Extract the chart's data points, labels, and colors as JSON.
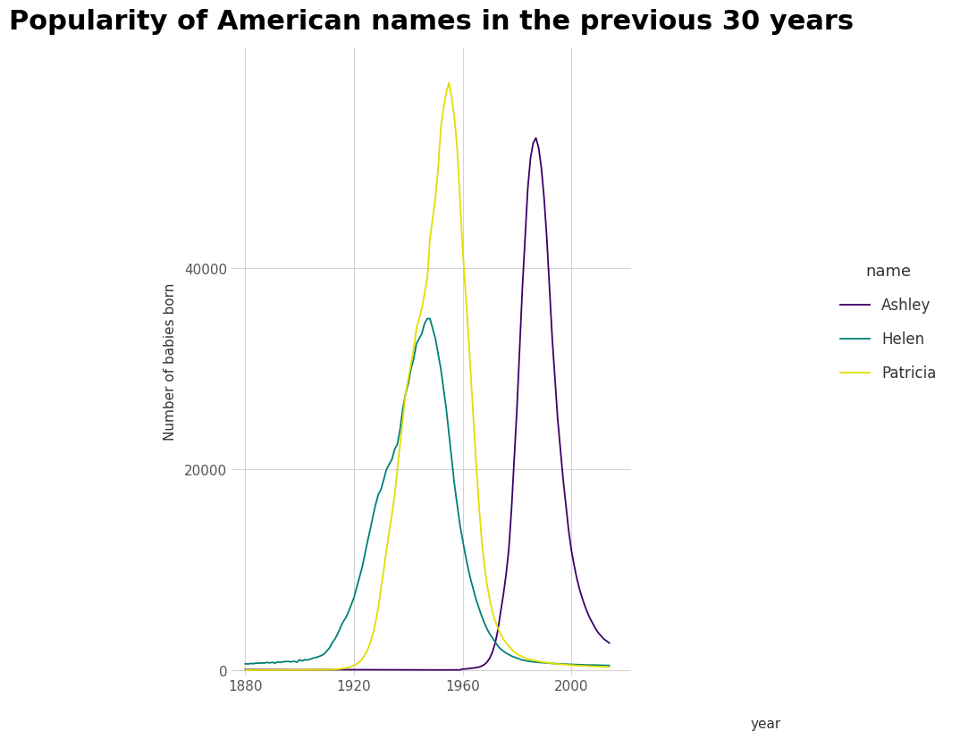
{
  "title": "Popularity of American names in the previous 30 years",
  "xlabel": "year",
  "ylabel": "Number of babies born",
  "background_color": "#ffffff",
  "panel_background": "#ffffff",
  "grid_color": "#d3d3d3",
  "title_fontsize": 22,
  "axis_label_fontsize": 11,
  "tick_fontsize": 11,
  "legend_title": "name",
  "legend_entries": [
    "Ashley",
    "Helen",
    "Patricia"
  ],
  "line_colors": {
    "Ashley": "#3d0066",
    "Helen": "#008075",
    "Patricia": "#e0e000"
  },
  "line_width": 1.3,
  "xlim": [
    1875,
    2022
  ],
  "ylim": [
    -500,
    62000
  ],
  "yticks": [
    0,
    20000,
    40000
  ],
  "xticks": [
    1880,
    1920,
    1960,
    2000
  ],
  "Ashley": {
    "years": [
      1880,
      1881,
      1882,
      1883,
      1884,
      1885,
      1886,
      1887,
      1888,
      1889,
      1890,
      1891,
      1892,
      1893,
      1894,
      1895,
      1896,
      1897,
      1898,
      1899,
      1900,
      1901,
      1902,
      1903,
      1904,
      1905,
      1906,
      1907,
      1908,
      1909,
      1910,
      1911,
      1912,
      1913,
      1914,
      1915,
      1916,
      1917,
      1918,
      1919,
      1920,
      1921,
      1922,
      1923,
      1924,
      1925,
      1926,
      1927,
      1928,
      1929,
      1930,
      1931,
      1932,
      1933,
      1934,
      1935,
      1936,
      1937,
      1938,
      1939,
      1940,
      1941,
      1942,
      1943,
      1944,
      1945,
      1946,
      1947,
      1948,
      1949,
      1950,
      1951,
      1952,
      1953,
      1954,
      1955,
      1956,
      1957,
      1958,
      1959,
      1960,
      1961,
      1962,
      1963,
      1964,
      1965,
      1966,
      1967,
      1968,
      1969,
      1970,
      1971,
      1972,
      1973,
      1974,
      1975,
      1976,
      1977,
      1978,
      1979,
      1980,
      1981,
      1982,
      1983,
      1984,
      1985,
      1986,
      1987,
      1988,
      1989,
      1990,
      1991,
      1992,
      1993,
      1994,
      1995,
      1996,
      1997,
      1998,
      1999,
      2000,
      2001,
      2002,
      2003,
      2004,
      2005,
      2006,
      2007,
      2008,
      2009,
      2010,
      2011,
      2012,
      2013,
      2014
    ],
    "values": [
      55,
      50,
      50,
      48,
      48,
      46,
      45,
      43,
      42,
      40,
      40,
      39,
      42,
      40,
      40,
      39,
      37,
      36,
      38,
      36,
      37,
      36,
      37,
      36,
      36,
      37,
      36,
      37,
      38,
      37,
      38,
      37,
      39,
      38,
      40,
      42,
      43,
      43,
      45,
      43,
      42,
      41,
      40,
      39,
      38,
      37,
      36,
      35,
      34,
      33,
      32,
      30,
      30,
      28,
      27,
      26,
      25,
      24,
      24,
      23,
      22,
      21,
      20,
      20,
      20,
      19,
      18,
      18,
      18,
      18,
      18,
      18,
      19,
      19,
      20,
      20,
      21,
      21,
      21,
      22,
      100,
      120,
      150,
      180,
      210,
      250,
      300,
      400,
      550,
      800,
      1200,
      1800,
      2700,
      4000,
      5800,
      7500,
      9500,
      12000,
      16000,
      21000,
      26000,
      32000,
      38000,
      43000,
      48000,
      51000,
      52500,
      53000,
      52000,
      50000,
      47000,
      43000,
      38000,
      33000,
      29000,
      25000,
      22000,
      19000,
      16500,
      14000,
      12000,
      10500,
      9200,
      8100,
      7200,
      6400,
      5700,
      5100,
      4600,
      4100,
      3700,
      3400,
      3100,
      2900,
      2700
    ]
  },
  "Helen": {
    "years": [
      1880,
      1881,
      1882,
      1883,
      1884,
      1885,
      1886,
      1887,
      1888,
      1889,
      1890,
      1891,
      1892,
      1893,
      1894,
      1895,
      1896,
      1897,
      1898,
      1899,
      1900,
      1901,
      1902,
      1903,
      1904,
      1905,
      1906,
      1907,
      1908,
      1909,
      1910,
      1911,
      1912,
      1913,
      1914,
      1915,
      1916,
      1917,
      1918,
      1919,
      1920,
      1921,
      1922,
      1923,
      1924,
      1925,
      1926,
      1927,
      1928,
      1929,
      1930,
      1931,
      1932,
      1933,
      1934,
      1935,
      1936,
      1937,
      1938,
      1939,
      1940,
      1941,
      1942,
      1943,
      1944,
      1945,
      1946,
      1947,
      1948,
      1949,
      1950,
      1951,
      1952,
      1953,
      1954,
      1955,
      1956,
      1957,
      1958,
      1959,
      1960,
      1961,
      1962,
      1963,
      1964,
      1965,
      1966,
      1967,
      1968,
      1969,
      1970,
      1971,
      1972,
      1973,
      1974,
      1975,
      1976,
      1977,
      1978,
      1979,
      1980,
      1981,
      1982,
      1983,
      1984,
      1985,
      1986,
      1987,
      1988,
      1989,
      1990,
      1991,
      1992,
      1993,
      1994,
      1995,
      1996,
      1997,
      1998,
      1999,
      2000,
      2001,
      2002,
      2003,
      2004,
      2005,
      2006,
      2007,
      2008,
      2009,
      2010,
      2011,
      2012,
      2013,
      2014
    ],
    "values": [
      636,
      612,
      662,
      649,
      685,
      703,
      712,
      703,
      765,
      726,
      775,
      698,
      821,
      768,
      830,
      862,
      856,
      819,
      886,
      791,
      1020,
      920,
      1050,
      1000,
      1100,
      1200,
      1250,
      1350,
      1450,
      1600,
      1900,
      2200,
      2700,
      3100,
      3600,
      4200,
      4800,
      5200,
      5800,
      6500,
      7200,
      8200,
      9200,
      10200,
      11500,
      12800,
      14000,
      15300,
      16500,
      17500,
      18000,
      19000,
      20000,
      20500,
      21000,
      22000,
      22500,
      24000,
      26000,
      27500,
      28500,
      30000,
      31000,
      32500,
      33000,
      33500,
      34500,
      35000,
      35000,
      34000,
      33000,
      31500,
      30000,
      28000,
      26000,
      23500,
      21000,
      18500,
      16500,
      14500,
      13000,
      11500,
      10200,
      9000,
      8000,
      7000,
      6200,
      5400,
      4700,
      4100,
      3600,
      3200,
      2800,
      2400,
      2100,
      1900,
      1700,
      1550,
      1400,
      1300,
      1200,
      1100,
      1000,
      950,
      900,
      860,
      820,
      800,
      770,
      750,
      730,
      710,
      690,
      670,
      650,
      630,
      620,
      610,
      600,
      580,
      570,
      560,
      550,
      540,
      530,
      520,
      510,
      510,
      505,
      500,
      490,
      480,
      475,
      470,
      465
    ]
  },
  "Patricia": {
    "years": [
      1880,
      1881,
      1882,
      1883,
      1884,
      1885,
      1886,
      1887,
      1888,
      1889,
      1890,
      1891,
      1892,
      1893,
      1894,
      1895,
      1896,
      1897,
      1898,
      1899,
      1900,
      1901,
      1902,
      1903,
      1904,
      1905,
      1906,
      1907,
      1908,
      1909,
      1910,
      1911,
      1912,
      1913,
      1914,
      1915,
      1916,
      1917,
      1918,
      1919,
      1920,
      1921,
      1922,
      1923,
      1924,
      1925,
      1926,
      1927,
      1928,
      1929,
      1930,
      1931,
      1932,
      1933,
      1934,
      1935,
      1936,
      1937,
      1938,
      1939,
      1940,
      1941,
      1942,
      1943,
      1944,
      1945,
      1946,
      1947,
      1948,
      1949,
      1950,
      1951,
      1952,
      1953,
      1954,
      1955,
      1956,
      1957,
      1958,
      1959,
      1960,
      1961,
      1962,
      1963,
      1964,
      1965,
      1966,
      1967,
      1968,
      1969,
      1970,
      1971,
      1972,
      1973,
      1974,
      1975,
      1976,
      1977,
      1978,
      1979,
      1980,
      1981,
      1982,
      1983,
      1984,
      1985,
      1986,
      1987,
      1988,
      1989,
      1990,
      1991,
      1992,
      1993,
      1994,
      1995,
      1996,
      1997,
      1998,
      1999,
      2000,
      2001,
      2002,
      2003,
      2004,
      2005,
      2006,
      2007,
      2008,
      2009,
      2010,
      2011,
      2012,
      2013,
      2014
    ],
    "values": [
      8,
      7,
      8,
      7,
      8,
      8,
      8,
      7,
      9,
      8,
      9,
      8,
      10,
      9,
      10,
      11,
      11,
      10,
      12,
      10,
      15,
      13,
      16,
      15,
      17,
      18,
      20,
      22,
      25,
      28,
      35,
      42,
      55,
      70,
      90,
      120,
      160,
      210,
      270,
      350,
      450,
      600,
      800,
      1100,
      1500,
      2000,
      2700,
      3600,
      4800,
      6300,
      8200,
      10000,
      12000,
      13800,
      15500,
      17500,
      20000,
      22500,
      25000,
      27500,
      29000,
      30500,
      32000,
      34000,
      35000,
      36000,
      37500,
      39000,
      43000,
      45000,
      47000,
      50000,
      54000,
      56000,
      57500,
      58500,
      57000,
      55000,
      52000,
      47000,
      42000,
      38000,
      34000,
      29500,
      25000,
      20500,
      16500,
      13000,
      10500,
      8500,
      7000,
      5800,
      4900,
      4200,
      3600,
      3100,
      2700,
      2400,
      2100,
      1800,
      1600,
      1450,
      1350,
      1200,
      1100,
      1050,
      980,
      920,
      870,
      830,
      780,
      740,
      700,
      670,
      640,
      610,
      590,
      570,
      550,
      520,
      500,
      480,
      460,
      445,
      430,
      415,
      400,
      390,
      380,
      365,
      350,
      340,
      330,
      320,
      310
    ]
  }
}
